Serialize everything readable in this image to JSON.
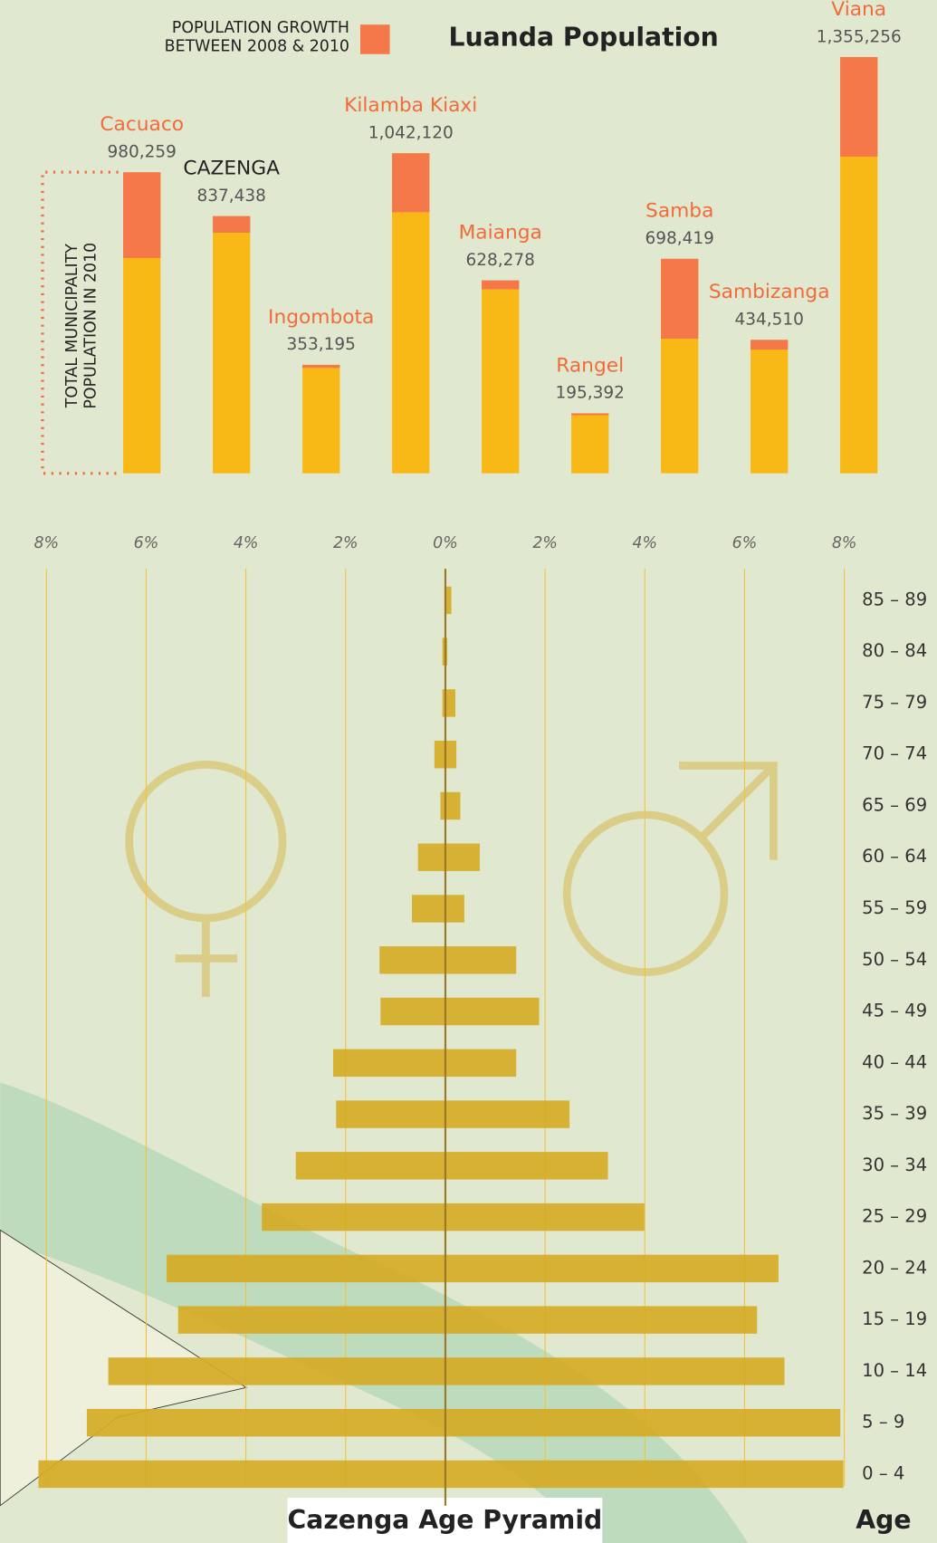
{
  "charts": [
    {
      "chart_data": {
        "type": "bar",
        "title": "Luanda Population",
        "categories": [
          "Cacuaco",
          "CAZENGA",
          "Ingombota",
          "Kilamba Kiaxi",
          "Maianga",
          "Rangel",
          "Samba",
          "Sambizanga",
          "Viana"
        ],
        "label_colors": [
          "#f26b3a",
          "#222222",
          "#f26b3a",
          "#f26b3a",
          "#f26b3a",
          "#f26b3a",
          "#f26b3a",
          "#f26b3a",
          "#f26b3a"
        ],
        "series": [
          {
            "name": "TOTAL MUNICIPALITY POPULATION IN 2010",
            "color": "#f8b917",
            "values": [
              980259,
              837438,
              353195,
              1042120,
              628278,
              195392,
              698419,
              434510,
              1355256
            ],
            "value_labels": [
              "980,259",
              "837,438",
              "353,195",
              "1,042,120",
              "628,278",
              "195,392",
              "698,419",
              "434,510",
              "1,355,256"
            ]
          },
          {
            "name": "POPULATION GROWTH BETWEEN 2008 & 2010",
            "color": "#f5784a",
            "values": [
              279000,
              54000,
              10000,
              192000,
              29000,
              6000,
              260000,
              32000,
              324000
            ]
          }
        ]
      }
    },
    {
      "chart_data": {
        "type": "pyramid",
        "title": "Cazenga Age Pyramid",
        "ylabel": "Age",
        "categories": [
          "0 – 4",
          "5 – 9",
          "10 – 14",
          "15 – 19",
          "20 – 24",
          "25 – 29",
          "30 – 34",
          "35 – 39",
          "40 – 44",
          "45 – 49",
          "50 – 54",
          "55 – 59",
          "60 – 64",
          "65 – 69",
          "70 – 74",
          "75 – 79",
          "80 – 84",
          "85 – 89"
        ],
        "series": [
          {
            "side": "left",
            "color": "#d5ab25",
            "values": [
              8.16,
              7.19,
              6.76,
              5.36,
              5.59,
              3.68,
              3.0,
              2.19,
              2.25,
              1.3,
              1.32,
              0.67,
              0.55,
              0.1,
              0.22,
              0.06,
              0.06,
              0.0
            ]
          },
          {
            "side": "right",
            "color": "#d5ab25",
            "values": [
              7.98,
              7.92,
              6.8,
              6.25,
              6.68,
              3.99,
              3.26,
              2.49,
              1.42,
              1.88,
              1.42,
              0.38,
              0.69,
              0.3,
              0.22,
              0.2,
              0.04,
              0.12
            ]
          }
        ],
        "xlim": [
          -8,
          8
        ],
        "xticks": [
          {
            "value": -8,
            "label": "8%"
          },
          {
            "value": -6,
            "label": "6%"
          },
          {
            "value": -4,
            "label": "4%"
          },
          {
            "value": -2,
            "label": "2%"
          },
          {
            "value": 0,
            "label": "0%"
          },
          {
            "value": 2,
            "label": "2%"
          },
          {
            "value": 4,
            "label": "4%"
          },
          {
            "value": 6,
            "label": "6%"
          },
          {
            "value": 8,
            "label": "8%"
          }
        ],
        "grid": true
      }
    }
  ]
}
